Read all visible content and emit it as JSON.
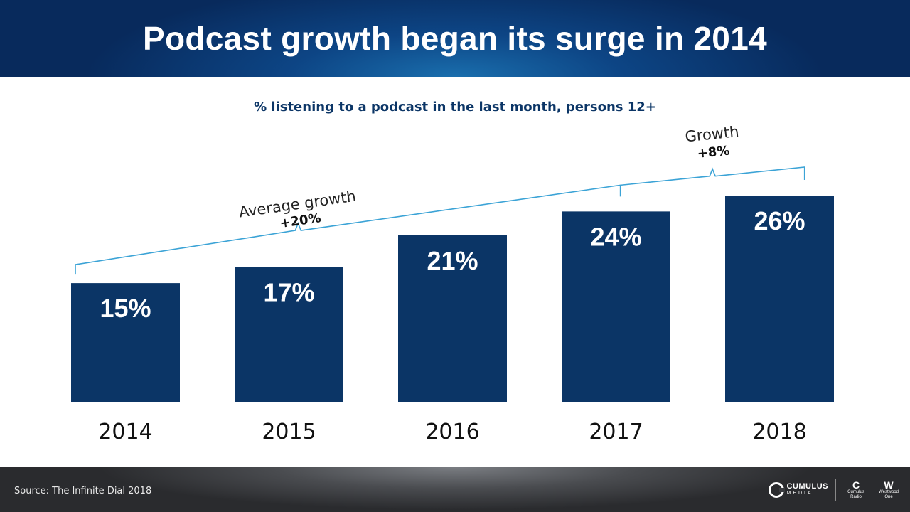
{
  "header": {
    "title": "Podcast growth began its surge in 2014"
  },
  "subtitle": "% listening to a podcast in the last month, persons 12+",
  "chart_data": {
    "type": "bar",
    "categories": [
      "2014",
      "2015",
      "2016",
      "2017",
      "2018"
    ],
    "values": [
      15,
      17,
      21,
      24,
      26
    ],
    "value_labels": [
      "15%",
      "17%",
      "21%",
      "24%",
      "26%"
    ],
    "title": "",
    "ylabel": "",
    "xlabel": "",
    "ylim": [
      0,
      26
    ],
    "bar_color": "#0b3566",
    "annotations": {
      "average": {
        "label": "Average growth",
        "value": "+20%"
      },
      "recent": {
        "label": "Growth",
        "value": "+8%"
      }
    },
    "bracket_color": "#3ba3d6"
  },
  "footer": {
    "source": "Source: The Infinite Dial 2018",
    "logo_main": "CUMULUS",
    "logo_main_sub": "MEDIA",
    "logo_2": "Cumulus Radio",
    "logo_3": "Westwood One"
  }
}
